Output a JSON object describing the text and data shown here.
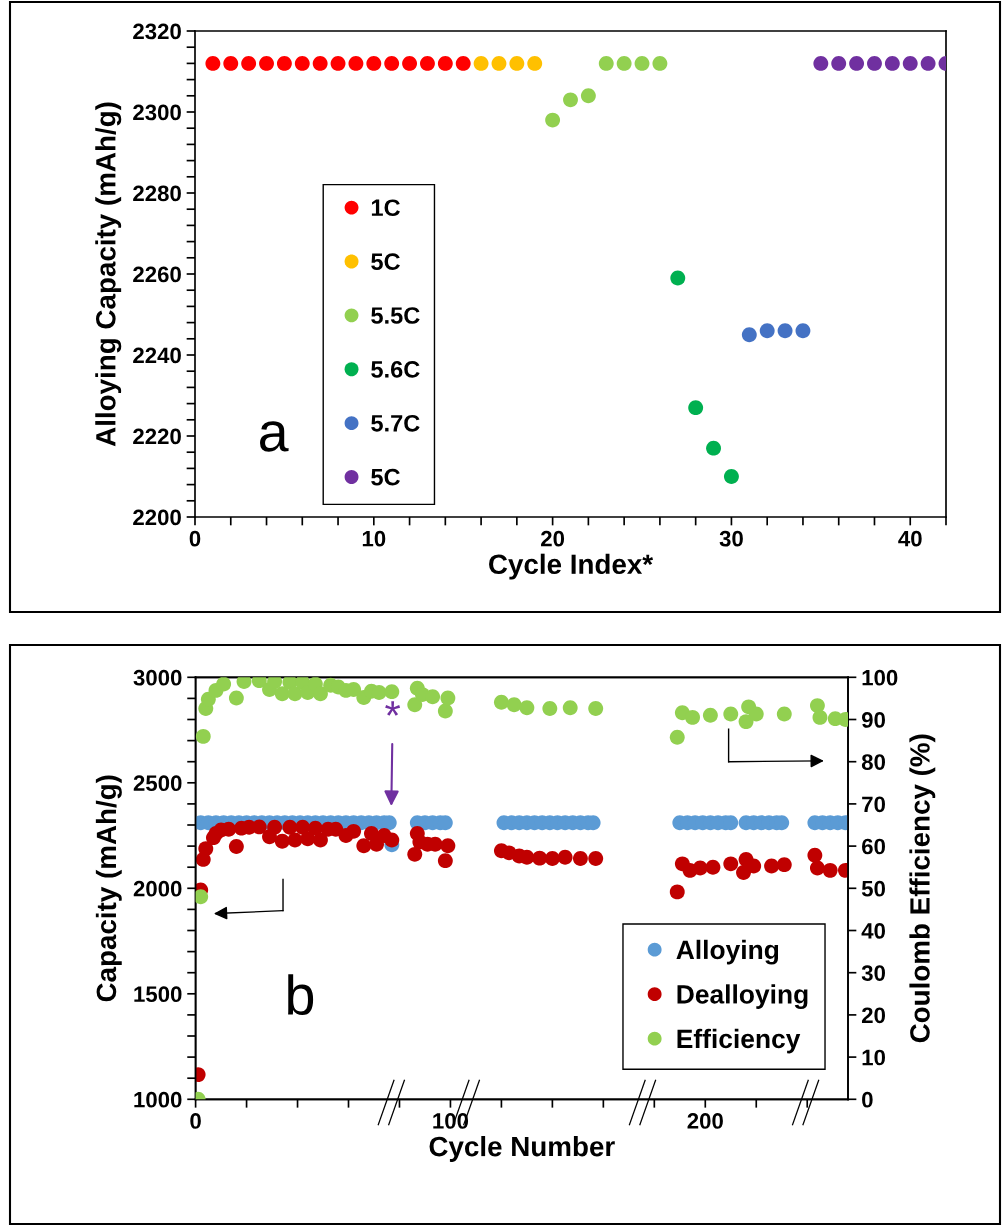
{
  "chart_data": [
    {
      "type": "scatter",
      "xlabel": "Cycle Index*",
      "ylabel": "Alloying Capacity (mAh/g)",
      "marker": "circle",
      "grid": false,
      "legend": "left",
      "xlim": [
        0,
        42
      ],
      "ylim": [
        2200,
        2320
      ],
      "xticks": [
        0,
        {
          "value": 2,
          "label": null
        },
        {
          "value": 4,
          "label": null
        },
        {
          "value": 6,
          "label": null
        },
        {
          "value": 8,
          "label": null
        },
        10,
        {
          "value": 12,
          "label": null
        },
        {
          "value": 14,
          "label": null
        },
        {
          "value": 16,
          "label": null
        },
        {
          "value": 18,
          "label": null
        },
        20,
        {
          "value": 22,
          "label": null
        },
        {
          "value": 24,
          "label": null
        },
        {
          "value": 26,
          "label": null
        },
        {
          "value": 28,
          "label": null
        },
        30,
        {
          "value": 32,
          "label": null
        },
        {
          "value": 34,
          "label": null
        },
        {
          "value": 36,
          "label": null
        },
        {
          "value": 38,
          "label": null
        },
        40,
        {
          "value": 42,
          "label": null
        }
      ],
      "yticks": [
        2200,
        {
          "value": 2204,
          "label": null
        },
        {
          "value": 2208,
          "label": null
        },
        {
          "value": 2212,
          "label": null
        },
        {
          "value": 2216,
          "label": null
        },
        2220,
        {
          "value": 2224,
          "label": null
        },
        {
          "value": 2228,
          "label": null
        },
        {
          "value": 2232,
          "label": null
        },
        {
          "value": 2236,
          "label": null
        },
        2240,
        {
          "value": 2244,
          "label": null
        },
        {
          "value": 2248,
          "label": null
        },
        {
          "value": 2252,
          "label": null
        },
        {
          "value": 2256,
          "label": null
        },
        2260,
        {
          "value": 2264,
          "label": null
        },
        {
          "value": 2268,
          "label": null
        },
        {
          "value": 2272,
          "label": null
        },
        {
          "value": 2276,
          "label": null
        },
        2280,
        {
          "value": 2284,
          "label": null
        },
        {
          "value": 2288,
          "label": null
        },
        {
          "value": 2292,
          "label": null
        },
        {
          "value": 2296,
          "label": null
        },
        2300,
        {
          "value": 2304,
          "label": null
        },
        {
          "value": 2308,
          "label": null
        },
        {
          "value": 2312,
          "label": null
        },
        {
          "value": 2316,
          "label": null
        },
        2320
      ],
      "annotations": [
        "a"
      ],
      "series": [
        {
          "name": "1C",
          "color": "#ff0000",
          "x": [
            1,
            2,
            3,
            4,
            5,
            6,
            7,
            8,
            9,
            10,
            11,
            12,
            13,
            14,
            15
          ],
          "values": [
            2312,
            2312,
            2312,
            2312,
            2312,
            2312,
            2312,
            2312,
            2312,
            2312,
            2312,
            2312,
            2312,
            2312,
            2312
          ]
        },
        {
          "name": "5C",
          "color": "#ffc000",
          "x": [
            16,
            17,
            18,
            19
          ],
          "values": [
            2312,
            2312,
            2312,
            2312
          ]
        },
        {
          "name": "5.5C",
          "color": "#92d050",
          "x": [
            20,
            21,
            22,
            23,
            24,
            25,
            26
          ],
          "values": [
            2298,
            2303,
            2304,
            2312,
            2312,
            2312,
            2312
          ]
        },
        {
          "name": "5.6C",
          "color": "#00b050",
          "x": [
            27,
            28,
            29,
            30
          ],
          "values": [
            2259,
            2227,
            2217,
            2210
          ]
        },
        {
          "name": "5.7C",
          "color": "#4472c4",
          "x": [
            31,
            32,
            33,
            34
          ],
          "values": [
            2245,
            2246,
            2246,
            2246
          ]
        },
        {
          "name": "5C",
          "color": "#7030a0",
          "x": [
            35,
            36,
            37,
            38,
            39,
            40,
            41,
            42
          ],
          "values": [
            2312,
            2312,
            2312,
            2312,
            2312,
            2312,
            2312,
            2312
          ]
        }
      ]
    },
    {
      "type": "scatter",
      "xlabel": "Cycle Number",
      "ylabel": "Capacity (mAh/g)",
      "y2label": "Coulomb Efficiency (%)",
      "marker": "circle",
      "grid": false,
      "legend": "bottom right",
      "xlim": [
        0,
        256
      ],
      "ylim": [
        1000,
        3000
      ],
      "y2lim": [
        0,
        100
      ],
      "xticks": [
        0,
        {
          "value": 20,
          "label": null
        },
        {
          "value": 40,
          "label": null
        },
        {
          "value": 60,
          "label": null
        },
        {
          "value": 80,
          "label": null
        },
        100,
        {
          "value": 120,
          "label": null
        },
        {
          "value": 140,
          "label": null
        },
        {
          "value": 160,
          "label": null
        },
        {
          "value": 180,
          "label": null
        },
        200,
        {
          "value": 220,
          "label": null
        },
        {
          "value": 240,
          "label": null
        }
      ],
      "yticks": [
        1000,
        {
          "value": 1100,
          "label": null
        },
        {
          "value": 1200,
          "label": null
        },
        {
          "value": 1300,
          "label": null
        },
        {
          "value": 1400,
          "label": null
        },
        1500,
        {
          "value": 1600,
          "label": null
        },
        {
          "value": 1700,
          "label": null
        },
        {
          "value": 1800,
          "label": null
        },
        {
          "value": 1900,
          "label": null
        },
        2000,
        {
          "value": 2100,
          "label": null
        },
        {
          "value": 2200,
          "label": null
        },
        {
          "value": 2300,
          "label": null
        },
        {
          "value": 2400,
          "label": null
        },
        2500,
        {
          "value": 2600,
          "label": null
        },
        {
          "value": 2700,
          "label": null
        },
        {
          "value": 2800,
          "label": null
        },
        {
          "value": 2900,
          "label": null
        },
        3000
      ],
      "y2ticks": [
        0,
        10,
        20,
        30,
        40,
        50,
        60,
        70,
        80,
        90,
        100
      ],
      "annotations": [
        "b",
        "*"
      ],
      "series": [
        {
          "name": "Alloying",
          "color": "#5b9bd5",
          "x": [
            2,
            5,
            8,
            11,
            14,
            17,
            20,
            23,
            26,
            29,
            32,
            35,
            38,
            41,
            44,
            47,
            50,
            53,
            56,
            59,
            62,
            65,
            68,
            71,
            74,
            76,
            77,
            87,
            90,
            93,
            96,
            98,
            121,
            124,
            127,
            130,
            133,
            136,
            139,
            142,
            145,
            148,
            151,
            154,
            156,
            190,
            193,
            196,
            199,
            202,
            205,
            208,
            210,
            216,
            219,
            222,
            225,
            228,
            230,
            243,
            246,
            249,
            252,
            255
          ],
          "values": [
            2311,
            2311,
            2311,
            2311,
            2311,
            2311,
            2311,
            2311,
            2311,
            2311,
            2311,
            2311,
            2311,
            2311,
            2311,
            2311,
            2311,
            2311,
            2311,
            2311,
            2311,
            2311,
            2311,
            2311,
            2311,
            2311,
            2206,
            2311,
            2311,
            2311,
            2311,
            2311,
            2311,
            2311,
            2311,
            2311,
            2311,
            2311,
            2311,
            2311,
            2311,
            2311,
            2311,
            2311,
            2311,
            2311,
            2311,
            2311,
            2311,
            2311,
            2311,
            2311,
            2311,
            2311,
            2311,
            2311,
            2311,
            2311,
            2311,
            2311,
            2311,
            2311,
            2311,
            2311
          ]
        },
        {
          "name": "Dealloying",
          "color": "#c00000",
          "x": [
            1,
            2,
            3,
            4,
            7,
            8,
            10,
            13,
            16,
            18,
            21,
            25,
            29,
            31,
            34,
            37,
            39,
            42,
            44,
            47,
            49,
            52,
            55,
            59,
            62,
            66,
            69,
            71,
            74,
            77,
            86,
            87,
            88,
            91,
            94,
            98,
            99,
            120,
            123,
            127,
            130,
            135,
            140,
            145,
            151,
            157,
            189,
            191,
            194,
            198,
            203,
            210,
            215,
            216,
            219,
            226,
            231,
            243,
            244,
            249,
            255
          ],
          "values": [
            1117,
            1992,
            2137,
            2188,
            2240,
            2260,
            2276,
            2280,
            2198,
            2285,
            2289,
            2291,
            2244,
            2289,
            2223,
            2289,
            2229,
            2289,
            2235,
            2285,
            2229,
            2280,
            2280,
            2250,
            2270,
            2202,
            2260,
            2209,
            2250,
            2229,
            2161,
            2260,
            2219,
            2209,
            2209,
            2131,
            2202,
            2178,
            2168,
            2153,
            2147,
            2143,
            2141,
            2147,
            2141,
            2141,
            1983,
            2116,
            2085,
            2096,
            2100,
            2116,
            2075,
            2137,
            2106,
            2106,
            2112,
            2157,
            2096,
            2085,
            2085
          ]
        },
        {
          "name": "Efficiency",
          "color": "#92d050",
          "axis": "y2",
          "x": [
            1,
            2,
            3,
            4,
            5,
            8,
            11,
            16,
            19,
            25,
            29,
            31,
            34,
            37,
            39,
            42,
            44,
            47,
            49,
            53,
            56,
            59,
            62,
            66,
            69,
            72,
            77,
            86,
            87,
            89,
            93,
            98,
            99,
            120,
            125,
            130,
            139,
            147,
            157,
            189,
            191,
            195,
            202,
            210,
            216,
            217,
            220,
            231,
            244,
            245,
            251,
            255
          ],
          "values": [
            0,
            48,
            86,
            92.6,
            94.8,
            96.9,
            98.4,
            95.1,
            99,
            99.2,
            97.1,
            99,
            96.1,
            98.8,
            96.1,
            98.8,
            96.4,
            98.4,
            96.1,
            98.1,
            97.7,
            96.9,
            97.1,
            95.2,
            96.7,
            96.4,
            96.6,
            93.5,
            97.4,
            95.9,
            95.4,
            92,
            95.1,
            94.1,
            93.5,
            92.8,
            92.6,
            92.8,
            92.6,
            85.8,
            91.6,
            90.5,
            91,
            91.3,
            89.5,
            93,
            91.3,
            91.3,
            93.3,
            90.5,
            90.2,
            90
          ]
        }
      ]
    }
  ]
}
